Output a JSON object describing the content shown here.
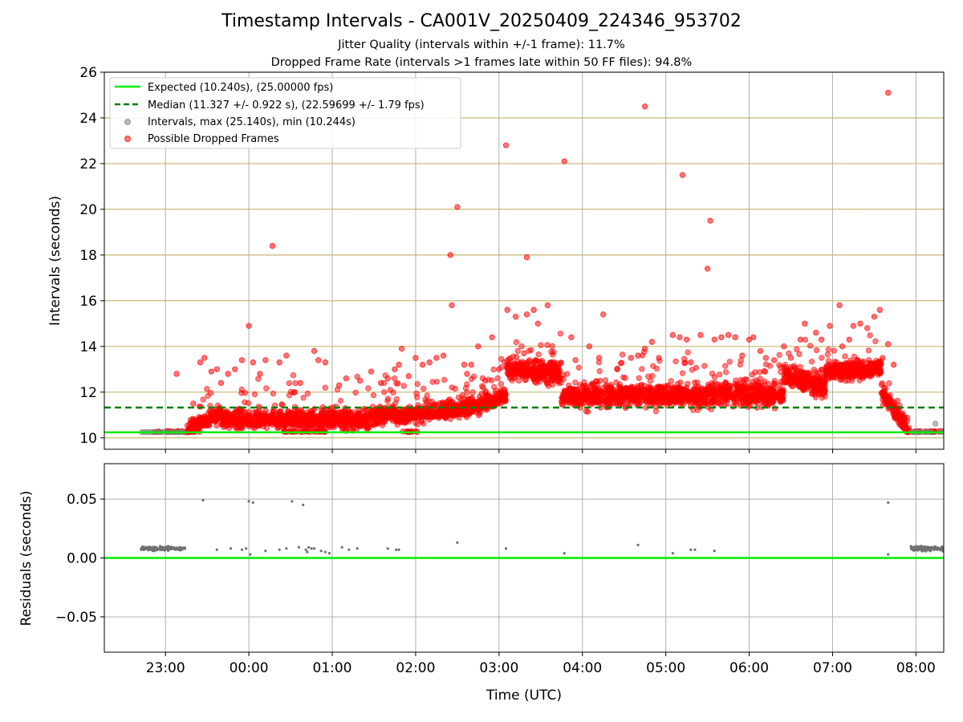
{
  "chart_data": [
    {
      "type": "scatter",
      "title": "Timestamp Intervals - CA001V_20250409_224346_953702",
      "subtitle_lines": [
        "Jitter Quality (intervals within +/-1 frame): 11.7%",
        "Dropped Frame Rate (intervals >1 frames late within 50 FF files): 94.8%"
      ],
      "ylabel": "Intervals (seconds)",
      "xlim": [
        "22:16",
        "08:20"
      ],
      "ylim": [
        9.5,
        26
      ],
      "y_ticks": [
        "10",
        "12",
        "14",
        "16",
        "18",
        "20",
        "22",
        "24",
        "26"
      ],
      "grid": "horizontal",
      "grid_color": "#c8b670",
      "legend_position": "top-left",
      "legend": [
        "Expected (10.240s), (25.00000 fps)",
        "Median (11.327 +/- 0.922 s), (22.59699 +/- 1.79 fps)",
        "Intervals, max (25.140s), min (10.244s)",
        "Possible Dropped Frames"
      ],
      "expected_interval": 10.24,
      "median_interval": 11.327,
      "colors": {
        "expected": "#00ee00",
        "median": "#008000",
        "intervals": "#808080",
        "dropped": "#ff0000"
      },
      "interval_points": [
        [
          "22:43",
          10.25
        ],
        [
          "22:45",
          10.25
        ],
        [
          "22:47",
          10.25
        ],
        [
          "22:49",
          10.25
        ],
        [
          "22:51",
          10.25
        ],
        [
          "22:53",
          10.25
        ],
        [
          "22:55",
          10.25
        ],
        [
          "22:57",
          10.25
        ],
        [
          "22:59",
          10.25
        ],
        [
          "23:01",
          10.25
        ],
        [
          "23:03",
          10.25
        ],
        [
          "23:05",
          10.25
        ],
        [
          "23:07",
          10.25
        ],
        [
          "23:09",
          10.25
        ],
        [
          "23:11",
          10.25
        ],
        [
          "23:13",
          10.25
        ],
        [
          "07:57",
          10.25
        ],
        [
          "07:59",
          10.25
        ],
        [
          "08:01",
          10.25
        ],
        [
          "08:03",
          10.25
        ],
        [
          "08:05",
          10.25
        ],
        [
          "08:07",
          10.25
        ],
        [
          "08:09",
          10.25
        ],
        [
          "08:11",
          10.25
        ],
        [
          "08:14",
          10.62
        ],
        [
          "08:17",
          10.25
        ],
        [
          "08:19",
          10.25
        ]
      ],
      "dropped_outliers": [
        [
          "23:08",
          12.8
        ],
        [
          "23:20",
          11.5
        ],
        [
          "23:25",
          13.3
        ],
        [
          "23:28",
          13.5
        ],
        [
          "23:33",
          12.9
        ],
        [
          "23:37",
          13.0
        ],
        [
          "23:40",
          12.4
        ],
        [
          "23:45",
          12.8
        ],
        [
          "23:50",
          13.0
        ],
        [
          "23:55",
          13.4
        ],
        [
          "00:00",
          14.9
        ],
        [
          "00:03",
          13.3
        ],
        [
          "00:08",
          12.8
        ],
        [
          "00:12",
          13.4
        ],
        [
          "00:17",
          18.4
        ],
        [
          "00:22",
          13.3
        ],
        [
          "00:27",
          13.6
        ],
        [
          "00:33",
          12.0
        ],
        [
          "00:37",
          12.4
        ],
        [
          "00:47",
          13.8
        ],
        [
          "00:50",
          13.4
        ],
        [
          "00:55",
          13.3
        ],
        [
          "01:05",
          12.3
        ],
        [
          "01:10",
          12.6
        ],
        [
          "01:20",
          12.5
        ],
        [
          "01:28",
          12.9
        ],
        [
          "01:35",
          12.4
        ],
        [
          "01:40",
          12.6
        ],
        [
          "01:45",
          13.0
        ],
        [
          "01:48",
          13.2
        ],
        [
          "01:50",
          13.9
        ],
        [
          "01:55",
          12.7
        ],
        [
          "02:00",
          13.5
        ],
        [
          "02:05",
          13.2
        ],
        [
          "02:10",
          13.3
        ],
        [
          "02:15",
          13.5
        ],
        [
          "02:20",
          13.6
        ],
        [
          "02:25",
          18.0
        ],
        [
          "02:26",
          15.8
        ],
        [
          "02:30",
          20.1
        ],
        [
          "02:35",
          13.2
        ],
        [
          "02:37",
          12.8
        ],
        [
          "02:40",
          13.2
        ],
        [
          "02:45",
          14.0
        ],
        [
          "02:50",
          12.5
        ],
        [
          "02:55",
          14.4
        ],
        [
          "03:00",
          13.0
        ],
        [
          "03:05",
          22.8
        ],
        [
          "03:06",
          15.6
        ],
        [
          "03:12",
          15.3
        ],
        [
          "03:15",
          13.0
        ],
        [
          "03:18",
          13.7
        ],
        [
          "03:20",
          17.9
        ],
        [
          "03:20",
          15.4
        ],
        [
          "03:25",
          15.6
        ],
        [
          "03:28",
          15.0
        ],
        [
          "03:35",
          15.8
        ],
        [
          "03:40",
          13.3
        ],
        [
          "03:47",
          22.1
        ],
        [
          "03:52",
          14.4
        ],
        [
          "03:55",
          13.4
        ],
        [
          "04:05",
          14.0
        ],
        [
          "04:12",
          13.5
        ],
        [
          "04:15",
          15.4
        ],
        [
          "04:25",
          13.0
        ],
        [
          "04:35",
          13.5
        ],
        [
          "04:40",
          13.6
        ],
        [
          "04:45",
          13.9
        ],
        [
          "04:45",
          24.5
        ],
        [
          "04:50",
          14.2
        ],
        [
          "04:55",
          13.5
        ],
        [
          "05:05",
          14.5
        ],
        [
          "05:10",
          14.4
        ],
        [
          "05:12",
          21.5
        ],
        [
          "05:15",
          14.3
        ],
        [
          "05:18",
          13.3
        ],
        [
          "05:25",
          14.5
        ],
        [
          "05:30",
          17.4
        ],
        [
          "05:32",
          19.5
        ],
        [
          "05:35",
          14.3
        ],
        [
          "05:40",
          14.4
        ],
        [
          "05:45",
          14.5
        ],
        [
          "05:50",
          14.4
        ],
        [
          "05:55",
          13.6
        ],
        [
          "06:00",
          14.3
        ],
        [
          "06:03",
          14.4
        ],
        [
          "06:08",
          13.8
        ],
        [
          "06:12",
          13.5
        ],
        [
          "06:18",
          13.4
        ],
        [
          "06:25",
          14.0
        ],
        [
          "06:30",
          13.5
        ],
        [
          "06:37",
          14.3
        ],
        [
          "06:40",
          15.0
        ],
        [
          "06:48",
          14.6
        ],
        [
          "06:52",
          14.3
        ],
        [
          "06:58",
          14.9
        ],
        [
          "07:05",
          15.8
        ],
        [
          "07:07",
          14.0
        ],
        [
          "07:12",
          14.3
        ],
        [
          "07:15",
          14.9
        ],
        [
          "07:20",
          15.0
        ],
        [
          "07:25",
          14.8
        ],
        [
          "07:30",
          15.3
        ],
        [
          "07:34",
          15.6
        ],
        [
          "07:36",
          13.5
        ],
        [
          "07:40",
          25.1
        ],
        [
          "07:40",
          14.1
        ],
        [
          "07:44",
          13.2
        ]
      ]
    },
    {
      "type": "scatter",
      "ylabel": "Residuals (seconds)",
      "xlabel": "Time (UTC)",
      "xlim": [
        "22:16",
        "08:20"
      ],
      "ylim": [
        -0.08,
        0.08
      ],
      "y_ticks": [
        "0.05",
        "0.00",
        "−0.05"
      ],
      "x_ticks": [
        "23:00",
        "00:00",
        "01:00",
        "02:00",
        "03:00",
        "04:00",
        "05:00",
        "06:00",
        "07:00",
        "08:00"
      ],
      "grid": "both",
      "zero_line_color": "#00ee00",
      "point_color": "#707070",
      "points": [
        [
          "23:27",
          0.049
        ],
        [
          "23:37",
          0.007
        ],
        [
          "23:47",
          0.008
        ],
        [
          "23:55",
          0.007
        ],
        [
          "23:58",
          0.008
        ],
        [
          "00:00",
          0.048
        ],
        [
          "00:01",
          0.003
        ],
        [
          "00:03",
          0.047
        ],
        [
          "00:12",
          0.006
        ],
        [
          "00:22",
          0.007
        ],
        [
          "00:27",
          0.008
        ],
        [
          "00:31",
          0.048
        ],
        [
          "00:36",
          0.009
        ],
        [
          "00:39",
          0.045
        ],
        [
          "00:41",
          0.007
        ],
        [
          "00:42",
          0.005
        ],
        [
          "00:43",
          0.009
        ],
        [
          "00:45",
          0.008
        ],
        [
          "00:47",
          0.008
        ],
        [
          "00:52",
          0.006
        ],
        [
          "00:55",
          0.005
        ],
        [
          "00:58",
          0.004
        ],
        [
          "01:07",
          0.009
        ],
        [
          "01:12",
          0.007
        ],
        [
          "01:18",
          0.008
        ],
        [
          "01:40",
          0.008
        ],
        [
          "01:46",
          0.007
        ],
        [
          "01:48",
          0.007
        ],
        [
          "02:30",
          0.013
        ],
        [
          "03:05",
          0.008
        ],
        [
          "03:47",
          0.004
        ],
        [
          "04:40",
          0.011
        ],
        [
          "05:05",
          0.004
        ],
        [
          "05:18",
          0.007
        ],
        [
          "05:21",
          0.007
        ],
        [
          "05:35",
          0.006
        ],
        [
          "07:40",
          0.047
        ],
        [
          "07:40",
          0.003
        ]
      ],
      "clusters": [
        {
          "from": "22:42",
          "to": "23:14",
          "y": 0.008,
          "spread": 0.0015
        },
        {
          "from": "07:56",
          "to": "08:20",
          "y": 0.008,
          "spread": 0.002
        }
      ]
    }
  ]
}
